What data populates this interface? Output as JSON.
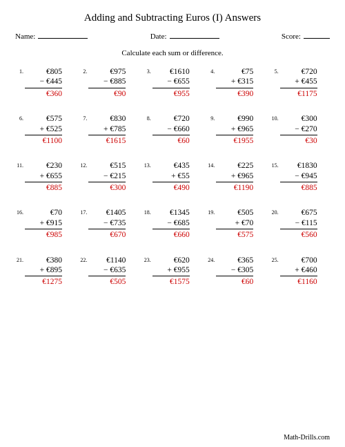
{
  "title": "Adding and Subtracting Euros (I) Answers",
  "labels": {
    "name": "Name:",
    "date": "Date:",
    "score": "Score:"
  },
  "instruction": "Calculate each sum or difference.",
  "currency": "€",
  "answer_color": "#cc0000",
  "footer": "Math-Drills.com",
  "problems": [
    {
      "n": "1.",
      "a": "€805",
      "op": "−",
      "b": "€445",
      "ans": "€360"
    },
    {
      "n": "2.",
      "a": "€975",
      "op": "−",
      "b": "€885",
      "ans": "€90"
    },
    {
      "n": "3.",
      "a": "€1610",
      "op": "−",
      "b": "€655",
      "ans": "€955"
    },
    {
      "n": "4.",
      "a": "€75",
      "op": "+",
      "b": "€315",
      "ans": "€390"
    },
    {
      "n": "5.",
      "a": "€720",
      "op": "+",
      "b": "€455",
      "ans": "€1175"
    },
    {
      "n": "6.",
      "a": "€575",
      "op": "+",
      "b": "€525",
      "ans": "€1100"
    },
    {
      "n": "7.",
      "a": "€830",
      "op": "+",
      "b": "€785",
      "ans": "€1615"
    },
    {
      "n": "8.",
      "a": "€720",
      "op": "−",
      "b": "€660",
      "ans": "€60"
    },
    {
      "n": "9.",
      "a": "€990",
      "op": "+",
      "b": "€965",
      "ans": "€1955"
    },
    {
      "n": "10.",
      "a": "€300",
      "op": "−",
      "b": "€270",
      "ans": "€30"
    },
    {
      "n": "11.",
      "a": "€230",
      "op": "+",
      "b": "€655",
      "ans": "€885"
    },
    {
      "n": "12.",
      "a": "€515",
      "op": "−",
      "b": "€215",
      "ans": "€300"
    },
    {
      "n": "13.",
      "a": "€435",
      "op": "+",
      "b": "€55",
      "ans": "€490"
    },
    {
      "n": "14.",
      "a": "€225",
      "op": "+",
      "b": "€965",
      "ans": "€1190"
    },
    {
      "n": "15.",
      "a": "€1830",
      "op": "−",
      "b": "€945",
      "ans": "€885"
    },
    {
      "n": "16.",
      "a": "€70",
      "op": "+",
      "b": "€915",
      "ans": "€985"
    },
    {
      "n": "17.",
      "a": "€1405",
      "op": "−",
      "b": "€735",
      "ans": "€670"
    },
    {
      "n": "18.",
      "a": "€1345",
      "op": "−",
      "b": "€685",
      "ans": "€660"
    },
    {
      "n": "19.",
      "a": "€505",
      "op": "+",
      "b": "€70",
      "ans": "€575"
    },
    {
      "n": "20.",
      "a": "€675",
      "op": "−",
      "b": "€115",
      "ans": "€560"
    },
    {
      "n": "21.",
      "a": "€380",
      "op": "+",
      "b": "€895",
      "ans": "€1275"
    },
    {
      "n": "22.",
      "a": "€1140",
      "op": "−",
      "b": "€635",
      "ans": "€505"
    },
    {
      "n": "23.",
      "a": "€620",
      "op": "+",
      "b": "€955",
      "ans": "€1575"
    },
    {
      "n": "24.",
      "a": "€365",
      "op": "−",
      "b": "€305",
      "ans": "€60"
    },
    {
      "n": "25.",
      "a": "€700",
      "op": "+",
      "b": "€460",
      "ans": "€1160"
    }
  ]
}
